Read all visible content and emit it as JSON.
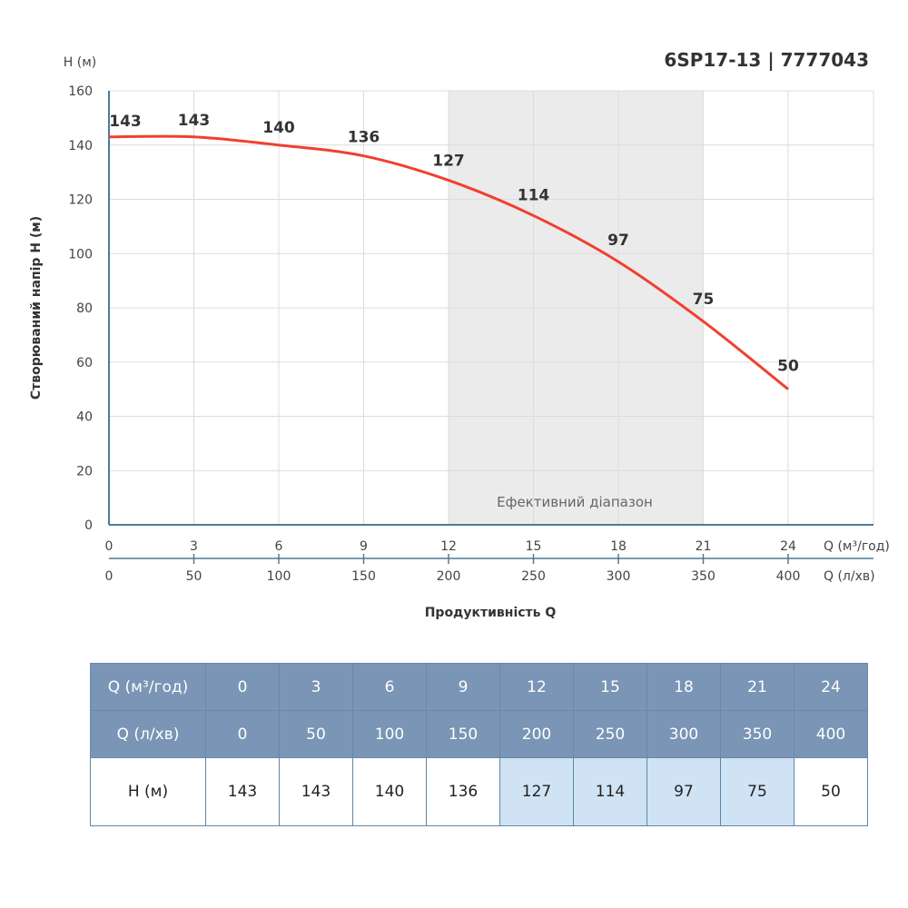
{
  "chart_data": {
    "type": "line",
    "title": "6SP17-13 | 7777043",
    "ylabel": "Створюваний напір H (м)",
    "y_unit_label": "H (м)",
    "xlabel": "Продуктивність Q",
    "x_unit_label": "Q (м³/год)",
    "x2_unit_label": "Q (л/хв)",
    "x": [
      0,
      3,
      6,
      9,
      12,
      15,
      18,
      21,
      24
    ],
    "x2": [
      0,
      50,
      100,
      150,
      200,
      250,
      300,
      350,
      400
    ],
    "series": [
      {
        "values": [
          143,
          143,
          140,
          136,
          127,
          114,
          97,
          75,
          50
        ],
        "color": "#f04030"
      }
    ],
    "xlim": [
      0,
      27
    ],
    "ylim": [
      0,
      160
    ],
    "yticks": [
      0,
      20,
      40,
      60,
      80,
      100,
      120,
      140,
      160
    ],
    "grid": true,
    "efficient_range": {
      "label": "Ефективний діапазон",
      "from": 12,
      "to": 21,
      "color": "#ebebeb"
    }
  },
  "table": {
    "row_labels": [
      "Q (м³/год)",
      "Q (л/хв)",
      "H (м)"
    ],
    "highlight_color": "#cfe3f5",
    "header_color": "#7a95b5"
  }
}
